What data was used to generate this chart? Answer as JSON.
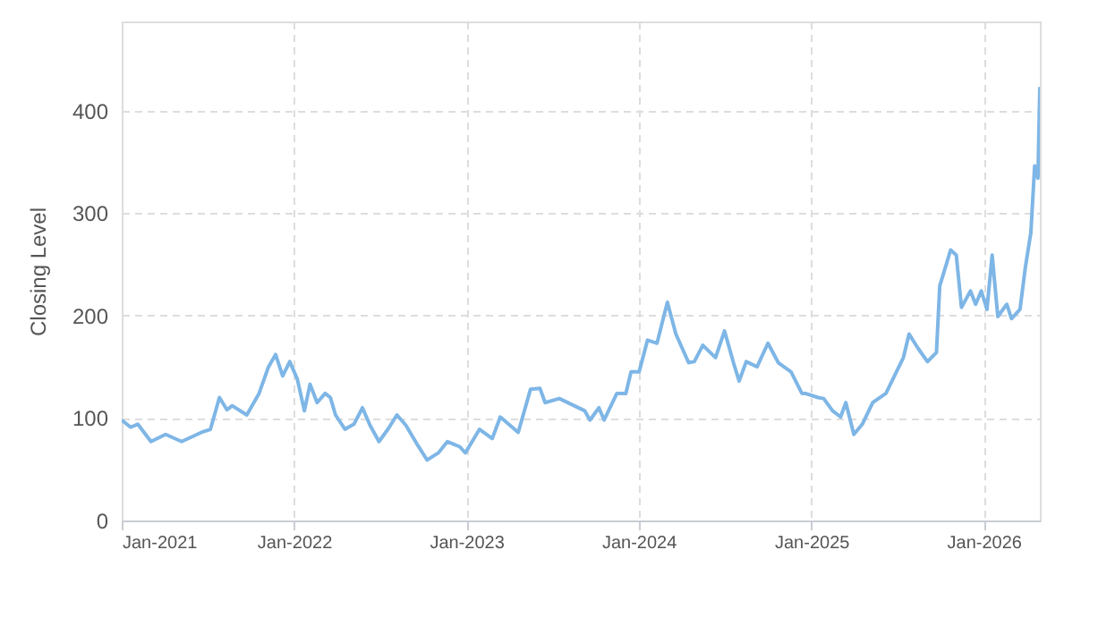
{
  "chart_data": {
    "type": "line",
    "ylabel": "Closing Level",
    "xlim": [
      "2021-01-01",
      "2026-04-30"
    ],
    "ylim": [
      0,
      487
    ],
    "yticks": [
      0,
      100,
      200,
      300,
      400
    ],
    "xticks": [
      {
        "value": "2021-01-01",
        "label": "Jan-2021"
      },
      {
        "value": "2022-01-01",
        "label": "Jan-2022"
      },
      {
        "value": "2023-01-01",
        "label": "Jan-2023"
      },
      {
        "value": "2024-01-01",
        "label": "Jan-2024"
      },
      {
        "value": "2025-01-01",
        "label": "Jan-2025"
      },
      {
        "value": "2026-01-01",
        "label": "Jan-2026"
      }
    ],
    "grid": true,
    "line_style": "solid",
    "marker": "none",
    "series": [
      {
        "color": "#7eb6e6",
        "x": [
          "2021-01-01",
          "2021-01-20",
          "2021-02-04",
          "2021-03-04",
          "2021-04-04",
          "2021-05-08",
          "2021-06-19",
          "2021-07-08",
          "2021-07-27",
          "2021-08-12",
          "2021-08-23",
          "2021-09-23",
          "2021-10-19",
          "2021-11-08",
          "2021-11-23",
          "2021-12-08",
          "2021-12-23",
          "2022-01-08",
          "2022-01-23",
          "2022-02-04",
          "2022-02-19",
          "2022-03-08",
          "2022-03-19",
          "2022-03-30",
          "2022-04-19",
          "2022-05-08",
          "2022-05-26",
          "2022-06-11",
          "2022-06-30",
          "2022-07-19",
          "2022-08-07",
          "2022-08-26",
          "2022-09-18",
          "2022-10-10",
          "2022-11-03",
          "2022-11-22",
          "2022-12-18",
          "2022-12-30",
          "2023-01-29",
          "2023-02-25",
          "2023-03-14",
          "2023-04-21",
          "2023-05-17",
          "2023-06-06",
          "2023-06-17",
          "2023-07-17",
          "2023-09-09",
          "2023-09-20",
          "2023-10-09",
          "2023-10-20",
          "2023-11-16",
          "2023-12-05",
          "2023-12-16",
          "2024-01-02",
          "2024-01-20",
          "2024-02-09",
          "2024-03-02",
          "2024-03-20",
          "2024-04-16",
          "2024-04-28",
          "2024-05-16",
          "2024-06-12",
          "2024-07-01",
          "2024-07-20",
          "2024-08-01",
          "2024-08-16",
          "2024-09-08",
          "2024-10-01",
          "2024-10-23",
          "2024-11-19",
          "2024-12-12",
          "2024-12-19",
          "2025-01-15",
          "2025-01-27",
          "2025-02-15",
          "2025-03-04",
          "2025-03-15",
          "2025-04-01",
          "2025-04-19",
          "2025-05-11",
          "2025-06-08",
          "2025-06-26",
          "2025-07-15",
          "2025-07-27",
          "2025-08-15",
          "2025-09-04",
          "2025-09-23",
          "2025-09-30",
          "2025-10-08",
          "2025-10-23",
          "2025-11-04",
          "2025-11-15",
          "2025-12-04",
          "2025-12-15",
          "2025-12-27",
          "2026-01-08",
          "2026-01-19",
          "2026-01-31",
          "2026-02-19",
          "2026-03-01",
          "2026-03-19",
          "2026-03-30",
          "2026-04-11",
          "2026-04-19",
          "2026-04-26",
          "2026-04-30"
        ],
        "values": [
          98,
          91,
          94,
          77,
          84,
          77,
          86,
          89,
          120,
          108,
          112,
          103,
          124,
          150,
          162,
          141,
          155,
          138,
          107,
          133,
          115,
          124,
          120,
          103,
          89,
          94,
          110,
          93,
          77,
          89,
          103,
          93,
          75,
          59,
          66,
          77,
          72,
          66,
          89,
          80,
          101,
          86,
          128,
          129,
          115,
          119,
          107,
          98,
          110,
          98,
          124,
          124,
          145,
          145,
          176,
          173,
          213,
          182,
          154,
          155,
          171,
          159,
          185,
          154,
          136,
          155,
          150,
          173,
          154,
          145,
          124,
          124,
          120,
          119,
          107,
          101,
          115,
          84,
          94,
          115,
          124,
          141,
          159,
          182,
          168,
          155,
          164,
          229,
          241,
          264,
          259,
          208,
          224,
          211,
          224,
          206,
          259,
          199,
          211,
          197,
          206,
          246,
          281,
          346,
          334,
          423
        ]
      }
    ]
  }
}
